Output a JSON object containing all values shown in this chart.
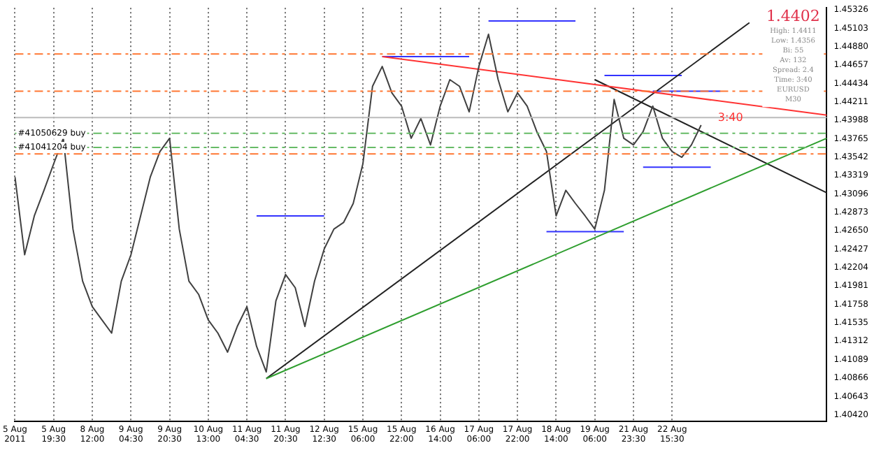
{
  "chart_data": {
    "type": "line",
    "categories": [
      "5 Aug 2011",
      null,
      null,
      null,
      "5 Aug 19:30",
      null,
      null,
      null,
      "8 Aug 12:00",
      null,
      null,
      null,
      "9 Aug 04:30",
      null,
      null,
      null,
      "9 Aug 20:30",
      null,
      null,
      null,
      "10 Aug 13:00",
      null,
      null,
      null,
      "11 Aug 04:30",
      null,
      null,
      null,
      "11 Aug 20:30",
      null,
      null,
      null,
      "12 Aug 12:30",
      null,
      null,
      null,
      "15 Aug 06:00",
      null,
      null,
      null,
      "15 Aug 22:00",
      null,
      null,
      null,
      "16 Aug 14:00",
      null,
      null,
      null,
      "17 Aug 06:00",
      null,
      null,
      null,
      "17 Aug 22:00",
      null,
      null,
      null,
      "18 Aug 14:00",
      null,
      null,
      null,
      "19 Aug 06:00",
      null,
      null,
      null,
      "21 Aug 23:30",
      null,
      null,
      null,
      "22 Aug 15:30",
      null,
      null,
      null,
      null,
      null,
      null,
      null,
      null,
      null,
      null,
      null,
      null,
      null,
      null,
      null,
      null
    ],
    "series": [
      {
        "color": "#404040",
        "values": [
          1.433,
          1.4236,
          1.4283,
          1.4314,
          1.4346,
          1.4377,
          1.4267,
          1.4204,
          1.4173,
          1.4157,
          1.4141,
          1.4204,
          1.4236,
          1.4283,
          1.433,
          1.4361,
          1.4377,
          1.4267,
          1.4204,
          1.4188,
          1.4157,
          1.4141,
          1.4118,
          1.4149,
          1.4173,
          1.4125,
          1.4094,
          1.418,
          1.4212,
          1.4196,
          1.4149,
          1.4204,
          1.4243,
          1.4267,
          1.4275,
          1.4298,
          1.4346,
          1.444,
          1.4464,
          1.4432,
          1.4416,
          1.4377,
          1.4401,
          1.4369,
          1.4416,
          1.4448,
          1.444,
          1.4409,
          1.4464,
          1.4503,
          1.4448,
          1.4409,
          1.4432,
          1.4416,
          1.4385,
          1.4361,
          1.4283,
          1.4314,
          1.4298,
          1.4283,
          1.4267,
          1.4314,
          1.4424,
          1.4377,
          1.4369,
          1.4385,
          1.4416,
          1.4377,
          1.4361,
          1.4354,
          1.4369,
          1.4393,
          null,
          null,
          null,
          null,
          null,
          null,
          null,
          null,
          null,
          null,
          null,
          null,
          null
        ]
      },
      {
        "color": "#ff3333",
        "values": [
          null,
          null,
          null,
          null,
          null,
          null,
          null,
          null,
          null,
          null,
          null,
          null,
          null,
          null,
          null,
          null,
          null,
          null,
          null,
          null,
          null,
          null,
          null,
          null,
          null,
          null,
          null,
          null,
          null,
          null,
          null,
          null,
          null,
          null,
          null,
          null,
          null,
          null,
          1.4476,
          null,
          null,
          null,
          null,
          null,
          null,
          null,
          null,
          null,
          null,
          null,
          null,
          null,
          null,
          null,
          null,
          null,
          null,
          null,
          null,
          null,
          null,
          null,
          null,
          null,
          null,
          null,
          null,
          null,
          null,
          null,
          null,
          null,
          null,
          null,
          null,
          null,
          null,
          null,
          null,
          null,
          null,
          null,
          null,
          null,
          1.4405
        ]
      },
      {
        "color": "#2e9e2e",
        "values": [
          null,
          null,
          null,
          null,
          null,
          null,
          null,
          null,
          null,
          null,
          null,
          null,
          null,
          null,
          null,
          null,
          null,
          null,
          null,
          null,
          null,
          null,
          null,
          null,
          null,
          null,
          1.4086,
          null,
          null,
          null,
          null,
          null,
          null,
          null,
          null,
          null,
          null,
          null,
          null,
          null,
          null,
          null,
          null,
          null,
          null,
          null,
          null,
          null,
          null,
          null,
          null,
          null,
          null,
          null,
          null,
          null,
          null,
          null,
          null,
          null,
          null,
          null,
          null,
          null,
          null,
          null,
          null,
          null,
          null,
          null,
          null,
          null,
          null,
          null,
          null,
          null,
          null,
          null,
          null,
          null,
          null,
          null,
          null,
          null,
          1.4377
        ]
      },
      {
        "color": "#222222",
        "values": [
          null,
          null,
          null,
          null,
          null,
          null,
          null,
          null,
          null,
          null,
          null,
          null,
          null,
          null,
          null,
          null,
          null,
          null,
          null,
          null,
          null,
          null,
          null,
          null,
          null,
          null,
          1.4086,
          null,
          null,
          null,
          null,
          null,
          null,
          null,
          null,
          null,
          null,
          null,
          null,
          null,
          null,
          null,
          null,
          null,
          null,
          null,
          null,
          null,
          null,
          null,
          null,
          null,
          null,
          null,
          null,
          null,
          null,
          null,
          null,
          null,
          null,
          null,
          null,
          null,
          null,
          null,
          null,
          null,
          null,
          null,
          null,
          null,
          null,
          null,
          null,
          null,
          1.4517,
          null,
          null,
          null,
          null,
          null,
          null,
          null,
          null
        ]
      },
      {
        "color": "#222222",
        "values": [
          null,
          null,
          null,
          null,
          null,
          null,
          null,
          null,
          null,
          null,
          null,
          null,
          null,
          null,
          null,
          null,
          null,
          null,
          null,
          null,
          null,
          null,
          null,
          null,
          null,
          null,
          null,
          null,
          null,
          null,
          null,
          null,
          null,
          null,
          null,
          null,
          null,
          null,
          null,
          null,
          null,
          null,
          null,
          null,
          null,
          null,
          null,
          null,
          null,
          null,
          null,
          null,
          null,
          null,
          null,
          null,
          null,
          null,
          null,
          null,
          1.4448,
          null,
          null,
          null,
          null,
          null,
          null,
          null,
          null,
          null,
          null,
          null,
          null,
          null,
          null,
          null,
          null,
          null,
          null,
          null,
          null,
          null,
          null,
          null,
          1.4311
        ]
      },
      {
        "color": "#3333ff",
        "values": [
          null,
          null,
          null,
          null,
          null,
          null,
          null,
          null,
          null,
          null,
          null,
          null,
          null,
          null,
          null,
          null,
          null,
          null,
          null,
          null,
          null,
          null,
          null,
          null,
          null,
          1.4283,
          null,
          null,
          null,
          null,
          null,
          null,
          1.4283,
          null,
          null,
          null,
          null,
          null,
          null,
          null,
          null,
          null,
          null,
          null,
          null,
          null,
          null,
          null,
          null,
          null,
          null,
          null,
          null,
          null,
          null,
          null,
          null,
          null,
          null,
          null,
          null,
          null,
          null,
          null,
          null,
          null,
          null,
          null,
          null,
          null,
          null,
          null,
          null,
          null,
          null,
          null,
          null,
          null,
          null,
          null,
          null,
          null,
          null,
          null,
          null
        ]
      },
      {
        "color": "#3333ff",
        "values": [
          null,
          null,
          null,
          null,
          null,
          null,
          null,
          null,
          null,
          null,
          null,
          null,
          null,
          null,
          null,
          null,
          null,
          null,
          null,
          null,
          null,
          null,
          null,
          null,
          null,
          null,
          null,
          null,
          null,
          null,
          null,
          null,
          null,
          null,
          null,
          null,
          null,
          null,
          1.4476,
          null,
          null,
          null,
          null,
          null,
          null,
          null,
          null,
          1.4476,
          null,
          null,
          null,
          null,
          null,
          null,
          null,
          null,
          null,
          null,
          null,
          null,
          null,
          null,
          null,
          null,
          null,
          null,
          null,
          null,
          null,
          null,
          null,
          null,
          null,
          null,
          null,
          null,
          null,
          null,
          null,
          null,
          null,
          null,
          null,
          null,
          null
        ]
      },
      {
        "color": "#3333ff",
        "values": [
          null,
          null,
          null,
          null,
          null,
          null,
          null,
          null,
          null,
          null,
          null,
          null,
          null,
          null,
          null,
          null,
          null,
          null,
          null,
          null,
          null,
          null,
          null,
          null,
          null,
          null,
          null,
          null,
          null,
          null,
          null,
          null,
          null,
          null,
          null,
          null,
          null,
          null,
          null,
          null,
          null,
          null,
          null,
          null,
          null,
          null,
          null,
          null,
          null,
          1.4519,
          null,
          null,
          null,
          null,
          null,
          null,
          null,
          null,
          1.4519,
          null,
          null,
          null,
          null,
          null,
          null,
          null,
          null,
          null,
          null,
          null,
          null,
          null,
          null,
          null,
          null,
          null,
          null,
          null,
          null,
          null,
          null,
          null,
          null,
          null,
          null
        ]
      },
      {
        "color": "#3333ff",
        "values": [
          null,
          null,
          null,
          null,
          null,
          null,
          null,
          null,
          null,
          null,
          null,
          null,
          null,
          null,
          null,
          null,
          null,
          null,
          null,
          null,
          null,
          null,
          null,
          null,
          null,
          null,
          null,
          null,
          null,
          null,
          null,
          null,
          null,
          null,
          null,
          null,
          null,
          null,
          null,
          null,
          null,
          null,
          null,
          null,
          null,
          null,
          null,
          null,
          null,
          null,
          null,
          null,
          null,
          null,
          null,
          1.4264,
          null,
          null,
          null,
          null,
          null,
          null,
          null,
          1.4264,
          null,
          null,
          null,
          null,
          null,
          null,
          null,
          null,
          null,
          null,
          null,
          null,
          null,
          null,
          null,
          null,
          null,
          null,
          null,
          null,
          null
        ]
      },
      {
        "color": "#3333ff",
        "values": [
          null,
          null,
          null,
          null,
          null,
          null,
          null,
          null,
          null,
          null,
          null,
          null,
          null,
          null,
          null,
          null,
          null,
          null,
          null,
          null,
          null,
          null,
          null,
          null,
          null,
          null,
          null,
          null,
          null,
          null,
          null,
          null,
          null,
          null,
          null,
          null,
          null,
          null,
          null,
          null,
          null,
          null,
          null,
          null,
          null,
          null,
          null,
          null,
          null,
          null,
          null,
          null,
          null,
          null,
          null,
          null,
          null,
          null,
          null,
          null,
          null,
          1.4453,
          null,
          null,
          null,
          null,
          null,
          null,
          null,
          1.4453,
          null,
          null,
          null,
          null,
          null,
          null,
          null,
          null,
          null,
          null,
          null,
          null,
          null,
          null,
          null
        ]
      },
      {
        "color": "#3333ff",
        "values": [
          null,
          null,
          null,
          null,
          null,
          null,
          null,
          null,
          null,
          null,
          null,
          null,
          null,
          null,
          null,
          null,
          null,
          null,
          null,
          null,
          null,
          null,
          null,
          null,
          null,
          null,
          null,
          null,
          null,
          null,
          null,
          null,
          null,
          null,
          null,
          null,
          null,
          null,
          null,
          null,
          null,
          null,
          null,
          null,
          null,
          null,
          null,
          null,
          null,
          null,
          null,
          null,
          null,
          null,
          null,
          null,
          null,
          null,
          null,
          null,
          null,
          null,
          null,
          null,
          null,
          1.4342,
          null,
          null,
          null,
          null,
          null,
          null,
          1.4342,
          null,
          null,
          null,
          null,
          null,
          null,
          null,
          null,
          null,
          null,
          null,
          null
        ]
      },
      {
        "color": "#3333ff",
        "values": [
          null,
          null,
          null,
          null,
          null,
          null,
          null,
          null,
          null,
          null,
          null,
          null,
          null,
          null,
          null,
          null,
          null,
          null,
          null,
          null,
          null,
          null,
          null,
          null,
          null,
          null,
          null,
          null,
          null,
          null,
          null,
          null,
          null,
          null,
          null,
          null,
          null,
          null,
          null,
          null,
          null,
          null,
          null,
          null,
          null,
          null,
          null,
          null,
          null,
          null,
          null,
          null,
          null,
          null,
          null,
          null,
          null,
          null,
          null,
          null,
          null,
          null,
          null,
          null,
          null,
          null,
          1.4434,
          null,
          null,
          null,
          null,
          null,
          null,
          1.4434,
          null,
          null,
          null,
          null,
          null,
          null,
          null,
          null,
          null,
          null,
          null
        ]
      }
    ],
    "ylim": [
      1.4034,
      1.4535
    ],
    "yticks": [
      {
        "value": 1.4042,
        "label": "1.40420"
      },
      {
        "value": 1.40643,
        "label": "1.40643"
      },
      {
        "value": 1.40866,
        "label": "1.40866"
      },
      {
        "value": 1.41089,
        "label": "1.41089"
      },
      {
        "value": 1.41312,
        "label": "1.41312"
      },
      {
        "value": 1.41535,
        "label": "1.41535"
      },
      {
        "value": 1.41758,
        "label": "1.41758"
      },
      {
        "value": 1.41981,
        "label": "1.41981"
      },
      {
        "value": 1.42204,
        "label": "1.42204"
      },
      {
        "value": 1.42427,
        "label": "1.42427"
      },
      {
        "value": 1.4265,
        "label": "1.42650"
      },
      {
        "value": 1.42873,
        "label": "1.42873"
      },
      {
        "value": 1.43096,
        "label": "1.43096"
      },
      {
        "value": 1.43319,
        "label": "1.43319"
      },
      {
        "value": 1.43542,
        "label": "1.43542"
      },
      {
        "value": 1.43765,
        "label": "1.43765"
      },
      {
        "value": 1.43988,
        "label": "1.43988"
      },
      {
        "value": 1.44211,
        "label": "1.44211"
      },
      {
        "value": 1.44434,
        "label": "1.44434"
      },
      {
        "value": 1.44657,
        "label": "1.44657"
      },
      {
        "value": 1.4488,
        "label": "1.44880"
      },
      {
        "value": 1.45103,
        "label": "1.45103"
      },
      {
        "value": 1.45326,
        "label": "1.45326"
      }
    ],
    "ref_lines": [
      {
        "axis": "y",
        "value": 1.4479,
        "label": null,
        "color": "#ff7733",
        "line_style": "dashed"
      },
      {
        "axis": "y",
        "value": 1.4434,
        "label": null,
        "color": "#ff7733",
        "line_style": "dashed"
      },
      {
        "axis": "y",
        "value": 1.4402,
        "label": null,
        "color": "#bbbbbb",
        "line_style": "solid"
      },
      {
        "axis": "y",
        "value": 1.4383,
        "label": "#41050629 buy",
        "color": "#66bb66",
        "line_style": "dashed"
      },
      {
        "axis": "y",
        "value": 1.4366,
        "label": "#41041204 buy",
        "color": "#66bb66",
        "line_style": "dashed"
      },
      {
        "axis": "y",
        "value": 1.4358,
        "label": null,
        "color": "#ff7733",
        "line_style": "dashed"
      }
    ],
    "annotations": [
      "1.4402",
      "High: 1.4411",
      "Low: 1.4356",
      "Bi: 55",
      "Av: 132",
      "Spread: 2.4",
      "Time: 3:40",
      "EURUSD",
      "M30",
      {
        "text": "3:40",
        "y": 1.4402
      }
    ],
    "grid": "x",
    "legend": false,
    "marker": "none",
    "line_style": "solid"
  }
}
